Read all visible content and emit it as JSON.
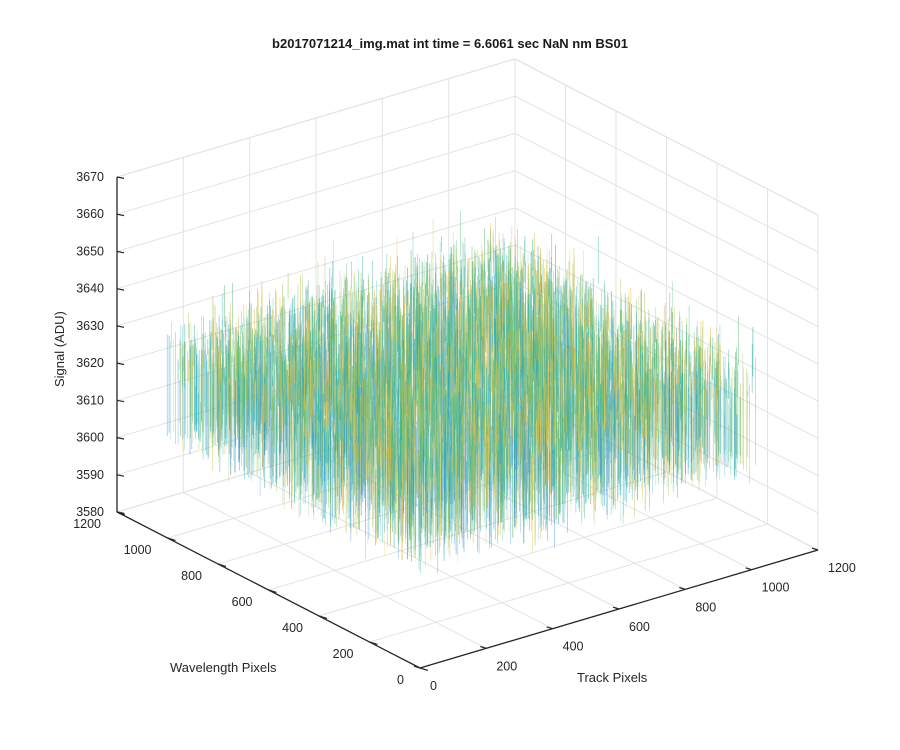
{
  "chart_data": {
    "type": "surface-3d",
    "title": "b2017071214_img.mat int time = 6.6061 sec  NaN nm BS01",
    "xlabel": "Track Pixels",
    "ylabel": "Wavelength Pixels",
    "zlabel": "Signal (ADU)",
    "xlim": [
      0,
      1200
    ],
    "ylim": [
      0,
      1200
    ],
    "zlim": [
      3580,
      3670
    ],
    "x_ticks": [
      "0",
      "200",
      "400",
      "600",
      "800",
      "1000",
      "1200"
    ],
    "y_ticks": [
      "0",
      "200",
      "400",
      "600",
      "800",
      "1000",
      "1200"
    ],
    "z_ticks": [
      "3580",
      "3590",
      "3600",
      "3610",
      "3620",
      "3630",
      "3640",
      "3650",
      "3660",
      "3670"
    ],
    "data_x_range": [
      1,
      1024
    ],
    "data_y_range": [
      1,
      1024
    ],
    "signal_mean": 3620,
    "signal_range": [
      3590,
      3655
    ],
    "grid": true,
    "colormap": [
      "#3d8fd8",
      "#1aa6c8",
      "#2fb4a2",
      "#5cc183",
      "#a8c35a",
      "#e7bd3b"
    ]
  }
}
